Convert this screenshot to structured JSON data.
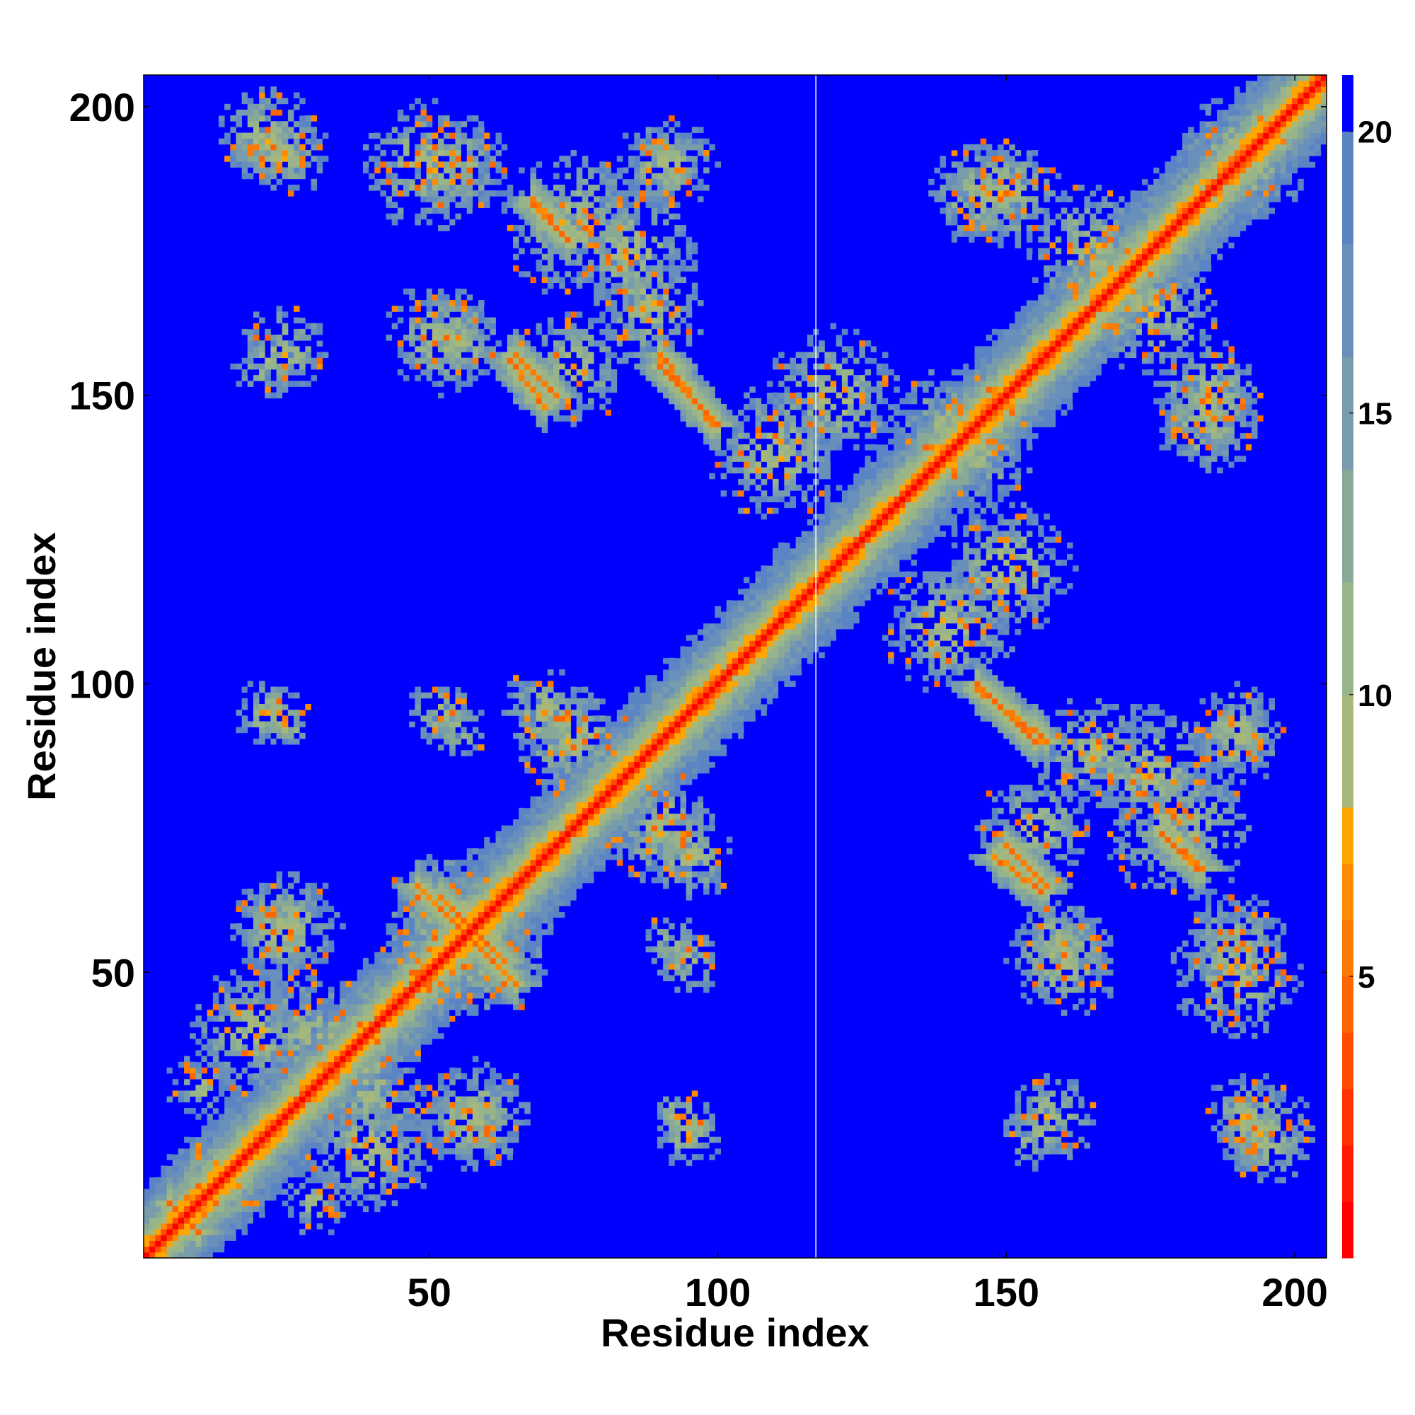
{
  "chart_data": {
    "type": "heatmap",
    "title": "",
    "xlabel": "Residue index",
    "ylabel": "Residue index",
    "n_residues": 205,
    "xlim": [
      1,
      205
    ],
    "ylim": [
      1,
      205
    ],
    "x_ticks": [
      50,
      100,
      150,
      200
    ],
    "y_ticks": [
      50,
      100,
      150,
      200
    ],
    "colorbar": {
      "ticks": [
        5,
        10,
        15,
        20
      ],
      "range": [
        0,
        21
      ],
      "levels": [
        {
          "max": 1,
          "color": "#ff0000"
        },
        {
          "max": 2,
          "color": "#ff1a00"
        },
        {
          "max": 3,
          "color": "#ff3300"
        },
        {
          "max": 4,
          "color": "#ff4d00"
        },
        {
          "max": 5,
          "color": "#ff6600"
        },
        {
          "max": 6,
          "color": "#ff7a00"
        },
        {
          "max": 7,
          "color": "#ff8c00"
        },
        {
          "max": 8,
          "color": "#ffa500"
        },
        {
          "max": 10,
          "color": "#a8b87a"
        },
        {
          "max": 12,
          "color": "#98b48a"
        },
        {
          "max": 14,
          "color": "#88a898"
        },
        {
          "max": 16,
          "color": "#789cab"
        },
        {
          "max": 18,
          "color": "#6890ba"
        },
        {
          "max": 20,
          "color": "#5a84c4"
        },
        {
          "max": 21,
          "color": "#0000ff"
        }
      ]
    },
    "background_value": 21,
    "secondary_structure_contacts": [
      {
        "type": "antiparallel",
        "a": [
          48,
          58
        ],
        "b": [
          65,
          55
        ],
        "note": "hairpin"
      },
      {
        "type": "antiparallel",
        "a": [
          52,
          60
        ],
        "b": [
          63,
          55
        ]
      },
      {
        "type": "antiparallel",
        "a": [
          65,
          72
        ],
        "b": [
          157,
          150
        ]
      },
      {
        "type": "antiparallel",
        "a": [
          90,
          100
        ],
        "b": [
          155,
          145
        ]
      },
      {
        "type": "antiparallel",
        "a": [
          68,
          74
        ],
        "b": [
          183,
          177
        ]
      },
      {
        "type": "antiparallel",
        "a": [
          145,
          157
        ],
        "b": [
          99,
          90
        ]
      },
      {
        "type": "antiparallel",
        "a": [
          148,
          156
        ],
        "b": [
          70,
          64
        ]
      },
      {
        "type": "antiparallel",
        "a": [
          177,
          184
        ],
        "b": [
          74,
          68
        ]
      },
      {
        "type": "antiparallel",
        "a": [
          5,
          10
        ],
        "b": [
          10,
          5
        ]
      }
    ],
    "contact_clusters": [
      {
        "x": 22,
        "y": 195,
        "r": 9
      },
      {
        "x": 50,
        "y": 190,
        "r": 12
      },
      {
        "x": 75,
        "y": 180,
        "r": 13
      },
      {
        "x": 92,
        "y": 190,
        "r": 8
      },
      {
        "x": 22,
        "y": 155,
        "r": 6
      },
      {
        "x": 52,
        "y": 160,
        "r": 10
      },
      {
        "x": 88,
        "y": 165,
        "r": 10
      },
      {
        "x": 110,
        "y": 140,
        "r": 12
      },
      {
        "x": 22,
        "y": 95,
        "r": 6
      },
      {
        "x": 52,
        "y": 95,
        "r": 6
      },
      {
        "x": 70,
        "y": 95,
        "r": 8
      },
      {
        "x": 90,
        "y": 75,
        "r": 10
      },
      {
        "x": 25,
        "y": 58,
        "r": 10
      },
      {
        "x": 55,
        "y": 58,
        "r": 14
      },
      {
        "x": 92,
        "y": 55,
        "r": 5
      },
      {
        "x": 20,
        "y": 40,
        "r": 12
      },
      {
        "x": 40,
        "y": 30,
        "r": 10
      },
      {
        "x": 57,
        "y": 25,
        "r": 9
      },
      {
        "x": 93,
        "y": 25,
        "r": 5
      },
      {
        "x": 15,
        "y": 12,
        "r": 8
      },
      {
        "x": 30,
        "y": 10,
        "r": 6
      },
      {
        "x": 145,
        "y": 185,
        "r": 9
      },
      {
        "x": 165,
        "y": 175,
        "r": 12
      },
      {
        "x": 192,
        "y": 190,
        "r": 10
      },
      {
        "x": 150,
        "y": 120,
        "r": 12
      },
      {
        "x": 185,
        "y": 150,
        "r": 10
      },
      {
        "x": 175,
        "y": 85,
        "r": 12
      },
      {
        "x": 155,
        "y": 75,
        "r": 10
      },
      {
        "x": 190,
        "y": 90,
        "r": 8
      },
      {
        "x": 160,
        "y": 55,
        "r": 9
      },
      {
        "x": 190,
        "y": 55,
        "r": 9
      },
      {
        "x": 158,
        "y": 25,
        "r": 8
      },
      {
        "x": 192,
        "y": 25,
        "r": 8
      },
      {
        "x": 140,
        "y": 145,
        "r": 10
      }
    ],
    "gap_column": 117,
    "grid": false
  }
}
